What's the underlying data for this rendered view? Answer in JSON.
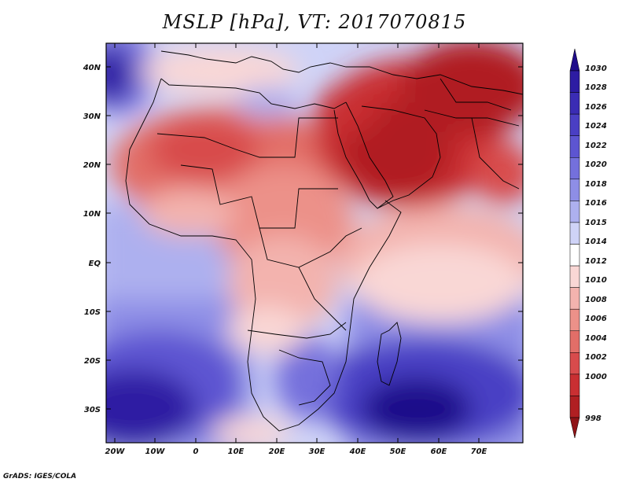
{
  "title": "MSLP [hPa], VT: 2017070815",
  "footer": "GrADS: IGES/COLA",
  "map": {
    "projection": "lat-lon",
    "lon_range": [
      -23,
      80
    ],
    "lat_range": [
      -37,
      46
    ],
    "lat_ticks": [
      "40N",
      "30N",
      "20N",
      "10N",
      "EQ",
      "10S",
      "20S",
      "30S"
    ],
    "lon_ticks": [
      "20W",
      "10W",
      "0",
      "10E",
      "20E",
      "30E",
      "40E",
      "50E",
      "60E",
      "70E"
    ]
  },
  "colorbar": {
    "labels": [
      "1030",
      "1028",
      "1026",
      "1024",
      "1022",
      "1020",
      "1018",
      "1016",
      "1015",
      "1014",
      "1012",
      "1010",
      "1008",
      "1006",
      "1004",
      "1002",
      "1000",
      "998"
    ],
    "colors": [
      "#1f0d8a",
      "#2d1ca3",
      "#3a2cb4",
      "#4a3fc4",
      "#5d55d1",
      "#7470dc",
      "#8e8ee6",
      "#adb0ef",
      "#cfd3f7",
      "#ffffff",
      "#f9d7d5",
      "#f3b3ae",
      "#ec9189",
      "#e26e68",
      "#d84b4c",
      "#c92f32",
      "#b01f22",
      "#8f1417"
    ]
  }
}
